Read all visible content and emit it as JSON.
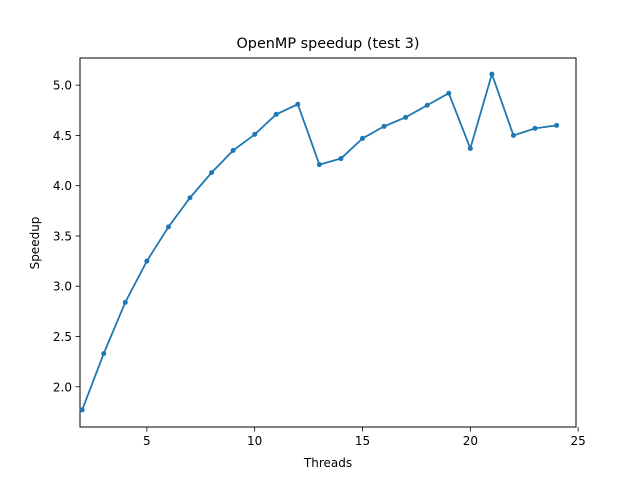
{
  "chart_data": {
    "type": "line",
    "title": "OpenMP speedup (test 3)",
    "xlabel": "Threads",
    "ylabel": "Speedup",
    "xlim": [
      1.9,
      24.9
    ],
    "ylim": [
      1.6,
      5.27
    ],
    "xticks": [
      5,
      10,
      15,
      20,
      25
    ],
    "xtick_labels": [
      "5",
      "10",
      "15",
      "20",
      "25"
    ],
    "yticks": [
      2.0,
      2.5,
      3.0,
      3.5,
      4.0,
      4.5,
      5.0
    ],
    "ytick_labels": [
      "2.0",
      "2.5",
      "3.0",
      "3.5",
      "4.0",
      "4.5",
      "5.0"
    ],
    "grid": false,
    "x": [
      2,
      3,
      4,
      5,
      6,
      7,
      8,
      9,
      10,
      11,
      12,
      13,
      14,
      15,
      16,
      17,
      18,
      19,
      20,
      21,
      22,
      23,
      24
    ],
    "series": [
      {
        "color": "#1f77b4",
        "marker": "circle",
        "values": [
          1.77,
          2.33,
          2.84,
          3.25,
          3.59,
          3.88,
          4.13,
          4.35,
          4.51,
          4.71,
          4.81,
          4.21,
          4.27,
          4.47,
          4.59,
          4.68,
          4.8,
          4.92,
          4.37,
          5.11,
          4.5,
          4.57,
          4.6
        ]
      }
    ]
  }
}
